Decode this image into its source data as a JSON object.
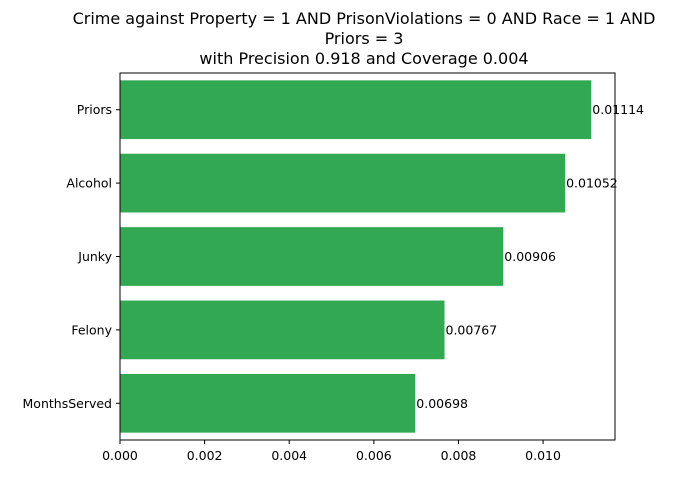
{
  "chart_data": {
    "type": "bar",
    "orientation": "horizontal",
    "title_lines": [
      "Crime against Property = 1 AND PrisonViolations = 0 AND Race = 1 AND",
      "Priors = 3",
      "with Precision 0.918 and Coverage 0.004"
    ],
    "categories": [
      "Priors",
      "Alcohol",
      "Junky",
      "Felony",
      "MonthsServed"
    ],
    "values": [
      0.01114,
      0.01052,
      0.00906,
      0.00767,
      0.00698
    ],
    "value_labels": [
      "0.01114",
      "0.01052",
      "0.00906",
      "0.00767",
      "0.00698"
    ],
    "xlim": [
      0,
      0.0117
    ],
    "xticks": [
      0,
      0.002,
      0.004,
      0.006,
      0.008,
      0.01
    ],
    "xtick_labels": [
      "0.000",
      "0.002",
      "0.004",
      "0.006",
      "0.008",
      "0.010"
    ],
    "xlabel": "",
    "ylabel": "",
    "grid": false,
    "bar_color": "#33a853"
  }
}
